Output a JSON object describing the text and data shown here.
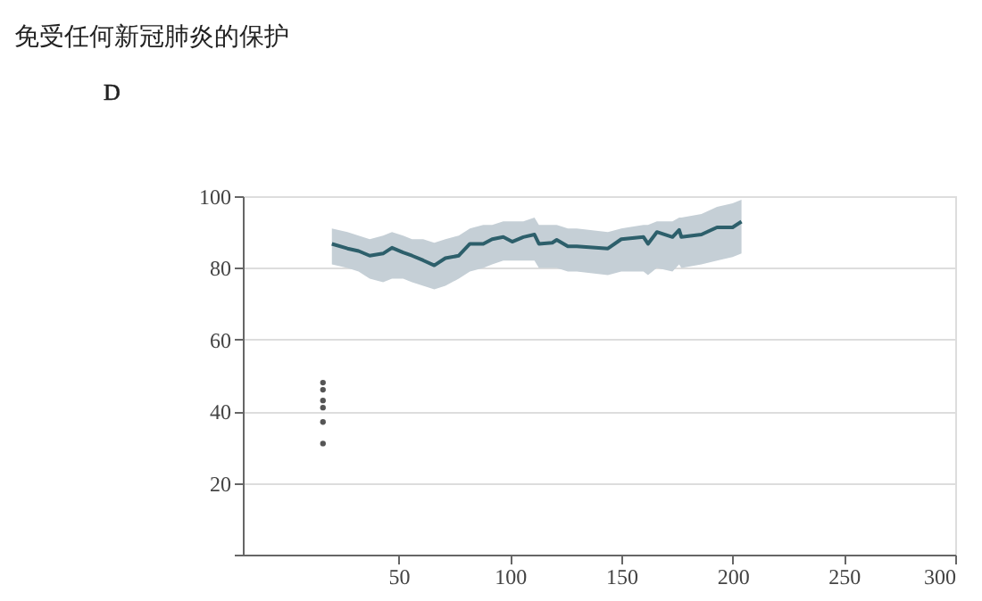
{
  "chart_data": {
    "type": "line",
    "title": "免受任何新冠肺炎的保护",
    "annotations": [
      "D"
    ],
    "xlim": [
      -20,
      300
    ],
    "xticks": [
      50,
      100,
      150,
      200,
      250,
      300
    ],
    "ylim": [
      0,
      100
    ],
    "yticks": [
      {
        "value": 0,
        "label": null
      },
      20,
      40,
      60,
      80,
      100
    ],
    "grid": "y",
    "series": [
      {
        "color": "#2d5f6b",
        "x": [
          20,
          27,
          32,
          37,
          43,
          47,
          52,
          56,
          61,
          66,
          71,
          77,
          82,
          88,
          92,
          97,
          101,
          106,
          111,
          113,
          119,
          121,
          126,
          130,
          144,
          150,
          160,
          162,
          166,
          173,
          176,
          177,
          186,
          193,
          200,
          204
        ],
        "values": [
          86.7,
          85.4,
          84.7,
          83.4,
          84.0,
          85.6,
          84.3,
          83.4,
          82.1,
          80.7,
          82.7,
          83.4,
          86.7,
          86.7,
          88.0,
          88.6,
          87.3,
          88.6,
          89.3,
          86.7,
          87.0,
          87.8,
          86.0,
          86.0,
          85.4,
          88.0,
          88.6,
          86.7,
          90.0,
          88.6,
          90.6,
          88.6,
          89.3,
          91.3,
          91.3,
          92.9
        ],
        "lower": [
          81,
          80,
          79,
          77,
          76,
          77,
          77,
          76,
          75,
          74,
          75,
          77,
          79,
          80,
          81,
          82,
          82,
          82,
          82,
          80,
          80,
          80,
          79,
          79,
          78,
          79,
          79,
          78,
          80,
          79,
          81,
          80,
          81,
          82,
          83,
          84
        ],
        "upper": [
          91,
          90,
          89,
          88,
          89,
          90,
          89,
          88,
          88,
          87,
          88,
          89,
          91,
          92,
          92,
          93,
          93,
          93,
          94,
          92,
          92,
          92,
          91,
          91,
          90,
          91,
          92,
          92,
          93,
          93,
          94,
          94,
          95,
          97,
          98,
          99
        ]
      },
      {
        "type": "scatter",
        "color": "#555555",
        "x": [
          16,
          16,
          16,
          16,
          16,
          16
        ],
        "values": [
          48,
          46,
          43,
          41,
          37,
          31
        ]
      }
    ]
  }
}
